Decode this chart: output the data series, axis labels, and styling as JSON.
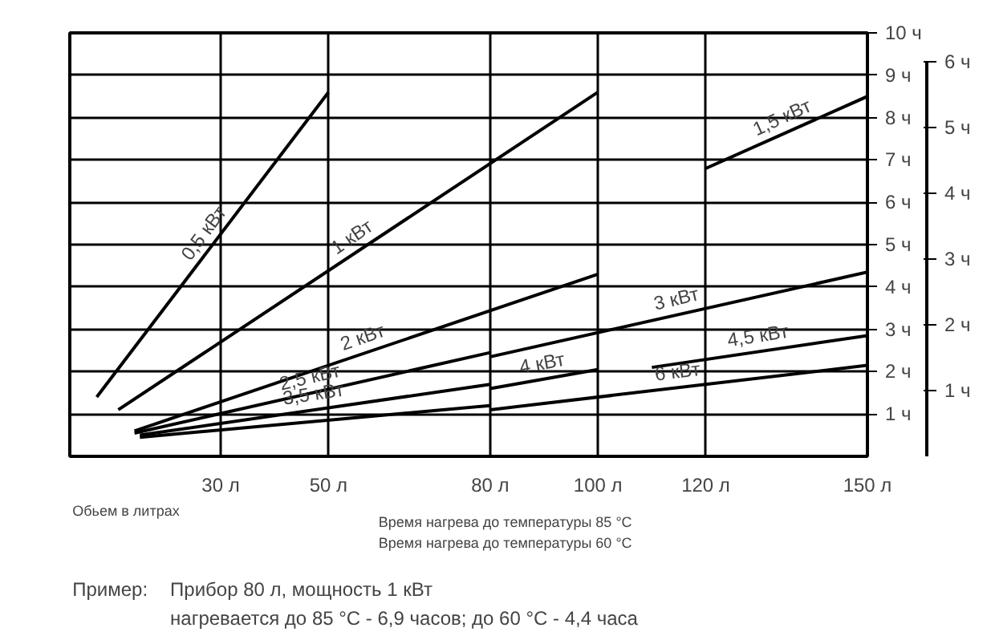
{
  "chart_data": {
    "type": "line",
    "xlabel": "Обьем в литрах",
    "xlim": [
      2,
      150
    ],
    "xticks": [
      {
        "value": 30,
        "label": "30 л"
      },
      {
        "value": 50,
        "label": "50 л"
      },
      {
        "value": 80,
        "label": "80 л"
      },
      {
        "value": 100,
        "label": "100 л"
      },
      {
        "value": 120,
        "label": "120 л"
      },
      {
        "value": 150,
        "label": "150 л"
      }
    ],
    "ylim": [
      0,
      10
    ],
    "yticks": [
      {
        "value": 1,
        "label": "1 ч"
      },
      {
        "value": 2,
        "label": "2 ч"
      },
      {
        "value": 3,
        "label": "3 ч"
      },
      {
        "value": 4,
        "label": "4 ч"
      },
      {
        "value": 5,
        "label": "5 ч"
      },
      {
        "value": 6,
        "label": "6 ч"
      },
      {
        "value": 7,
        "label": "7 ч"
      },
      {
        "value": 8,
        "label": "8 ч"
      },
      {
        "value": 9,
        "label": "9 ч"
      },
      {
        "value": 10,
        "label": "10 ч"
      }
    ],
    "y2lim": [
      0,
      6.44
    ],
    "y2ticks": [
      {
        "value": 1,
        "label": "1 ч"
      },
      {
        "value": 2,
        "label": "2 ч"
      },
      {
        "value": 3,
        "label": "3 ч"
      },
      {
        "value": 4,
        "label": "4 ч"
      },
      {
        "value": 5,
        "label": "5 ч"
      },
      {
        "value": 6,
        "label": "6 ч"
      }
    ],
    "grid": true,
    "line_style": "solid",
    "series": [
      {
        "name": "0,5 кВт",
        "color": "#000000",
        "x": [
          7,
          50
        ],
        "values": [
          1.4,
          8.6
        ]
      },
      {
        "name": "1 кВт",
        "color": "#000000",
        "x": [
          11,
          100
        ],
        "values": [
          1.1,
          8.6
        ]
      },
      {
        "name": "1,5 кВт",
        "color": "#000000",
        "x": [
          120,
          150
        ],
        "values": [
          6.8,
          8.5
        ]
      },
      {
        "name": "2 кВт",
        "color": "#000000",
        "x": [
          14,
          100
        ],
        "values": [
          0.6,
          4.3
        ]
      },
      {
        "name": "2,5 кВт",
        "color": "#000000",
        "x": [
          14,
          80
        ],
        "values": [
          0.55,
          2.45
        ]
      },
      {
        "name": "3 кВт",
        "color": "#000000",
        "x": [
          80,
          150
        ],
        "values": [
          2.35,
          4.35
        ]
      },
      {
        "name": "3,5 кВт",
        "color": "#000000",
        "x": [
          15,
          80
        ],
        "values": [
          0.5,
          1.7
        ]
      },
      {
        "name": "4 кВт",
        "color": "#000000",
        "x": [
          80,
          100
        ],
        "values": [
          1.6,
          2.05
        ]
      },
      {
        "name": "4,5 кВт",
        "color": "#000000",
        "x": [
          110,
          150
        ],
        "values": [
          2.1,
          2.85
        ]
      },
      {
        "name": "6 кВт",
        "color": "#000000",
        "x": [
          80,
          150
        ],
        "values": [
          1.1,
          2.15
        ]
      },
      {
        "color": "#000000",
        "x": [
          15,
          80
        ],
        "values": [
          0.45,
          1.2
        ]
      }
    ],
    "annotations": [
      "Время нагрева до температуры 85 °C",
      "Время нагрева до температуры 60 °C",
      "Пример:",
      "Прибор 80 л, мощность 1 кВт",
      "нагревается до 85 °C - 6,9 часов; до 60 °C - 4,4 часа"
    ]
  }
}
